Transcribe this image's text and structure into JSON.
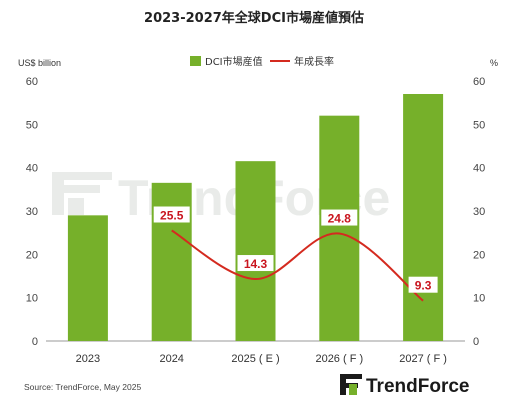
{
  "chart_data": {
    "type": "bar",
    "title": "2023-2027年全球DCI市場産値預估",
    "ylabel_left": "US$ billion",
    "ylabel_right": "%",
    "categories": [
      "2023",
      "2024",
      "2025 ( E )",
      "2026 ( F )",
      "2027 ( F )"
    ],
    "ylim_left": [
      0,
      60
    ],
    "ylim_right": [
      0,
      60
    ],
    "yticks": [
      0,
      10,
      20,
      30,
      40,
      50,
      60
    ],
    "grid": false,
    "legend_placement": "top-center",
    "series": [
      {
        "name": "DCI市場産值",
        "type": "bar",
        "axis": "left",
        "color": "#76b02a",
        "values": [
          29,
          36.5,
          41.5,
          52,
          57
        ]
      },
      {
        "name": "年成長率",
        "type": "line",
        "axis": "right",
        "color": "#d42a1f",
        "values": [
          null,
          25.5,
          14.3,
          24.8,
          9.3
        ],
        "data_labels": [
          "",
          "25.5",
          "14.3",
          "24.8",
          "9.3"
        ]
      }
    ]
  },
  "source": "Source: TrendForce, May 2025",
  "brand": {
    "name": "TrendForce",
    "color_dark": "#1a1a1a",
    "color_accent": "#76b02a"
  },
  "watermark": {
    "text": "TrendForce",
    "color": "#e9ebe9"
  }
}
